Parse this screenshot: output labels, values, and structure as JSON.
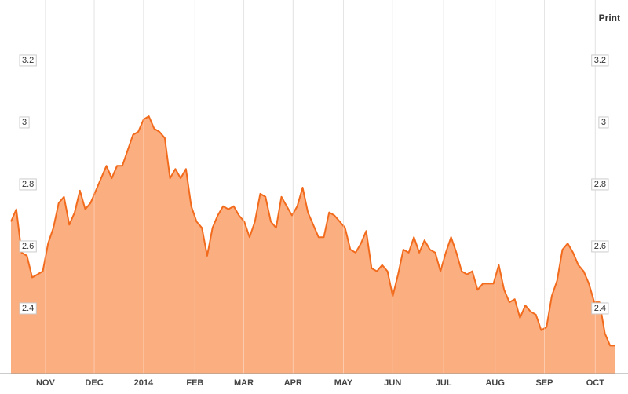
{
  "print_label": "Print",
  "chart_data": {
    "type": "area",
    "values": [
      2.68,
      2.72,
      2.58,
      2.57,
      2.5,
      2.51,
      2.52,
      2.61,
      2.66,
      2.74,
      2.76,
      2.67,
      2.71,
      2.78,
      2.72,
      2.74,
      2.78,
      2.82,
      2.86,
      2.82,
      2.86,
      2.86,
      2.91,
      2.96,
      2.97,
      3.01,
      3.02,
      2.98,
      2.97,
      2.95,
      2.82,
      2.85,
      2.82,
      2.85,
      2.73,
      2.68,
      2.66,
      2.57,
      2.66,
      2.7,
      2.73,
      2.72,
      2.73,
      2.7,
      2.68,
      2.63,
      2.68,
      2.77,
      2.76,
      2.68,
      2.66,
      2.76,
      2.73,
      2.7,
      2.73,
      2.79,
      2.71,
      2.67,
      2.63,
      2.63,
      2.71,
      2.7,
      2.68,
      2.66,
      2.59,
      2.58,
      2.61,
      2.65,
      2.53,
      2.52,
      2.54,
      2.52,
      2.44,
      2.51,
      2.59,
      2.58,
      2.63,
      2.58,
      2.62,
      2.59,
      2.58,
      2.52,
      2.58,
      2.63,
      2.58,
      2.52,
      2.51,
      2.52,
      2.46,
      2.48,
      2.48,
      2.48,
      2.54,
      2.46,
      2.42,
      2.43,
      2.37,
      2.41,
      2.39,
      2.38,
      2.33,
      2.34,
      2.44,
      2.49,
      2.59,
      2.61,
      2.58,
      2.54,
      2.52,
      2.48,
      2.42,
      2.42,
      2.32,
      2.28,
      2.28
    ],
    "color": "#f26b1d",
    "fill_color": "#fbae80",
    "xlim": [
      0,
      114
    ],
    "xticks": [
      {
        "value": 6.5,
        "label": "NOV"
      },
      {
        "value": 15.7,
        "label": "DEC"
      },
      {
        "value": 25.0,
        "label": "2014"
      },
      {
        "value": 34.7,
        "label": "FEB"
      },
      {
        "value": 43.9,
        "label": "MAR"
      },
      {
        "value": 53.2,
        "label": "APR"
      },
      {
        "value": 62.7,
        "label": "MAY"
      },
      {
        "value": 72.0,
        "label": "JUN"
      },
      {
        "value": 81.6,
        "label": "JUL"
      },
      {
        "value": 91.3,
        "label": "AUG"
      },
      {
        "value": 100.6,
        "label": "SEP"
      },
      {
        "value": 110.2,
        "label": "OCT"
      }
    ],
    "ylim": [
      2.19,
      3.395
    ],
    "yticks": [
      2.4,
      2.6,
      2.8,
      3,
      3.2
    ],
    "grid": true
  }
}
